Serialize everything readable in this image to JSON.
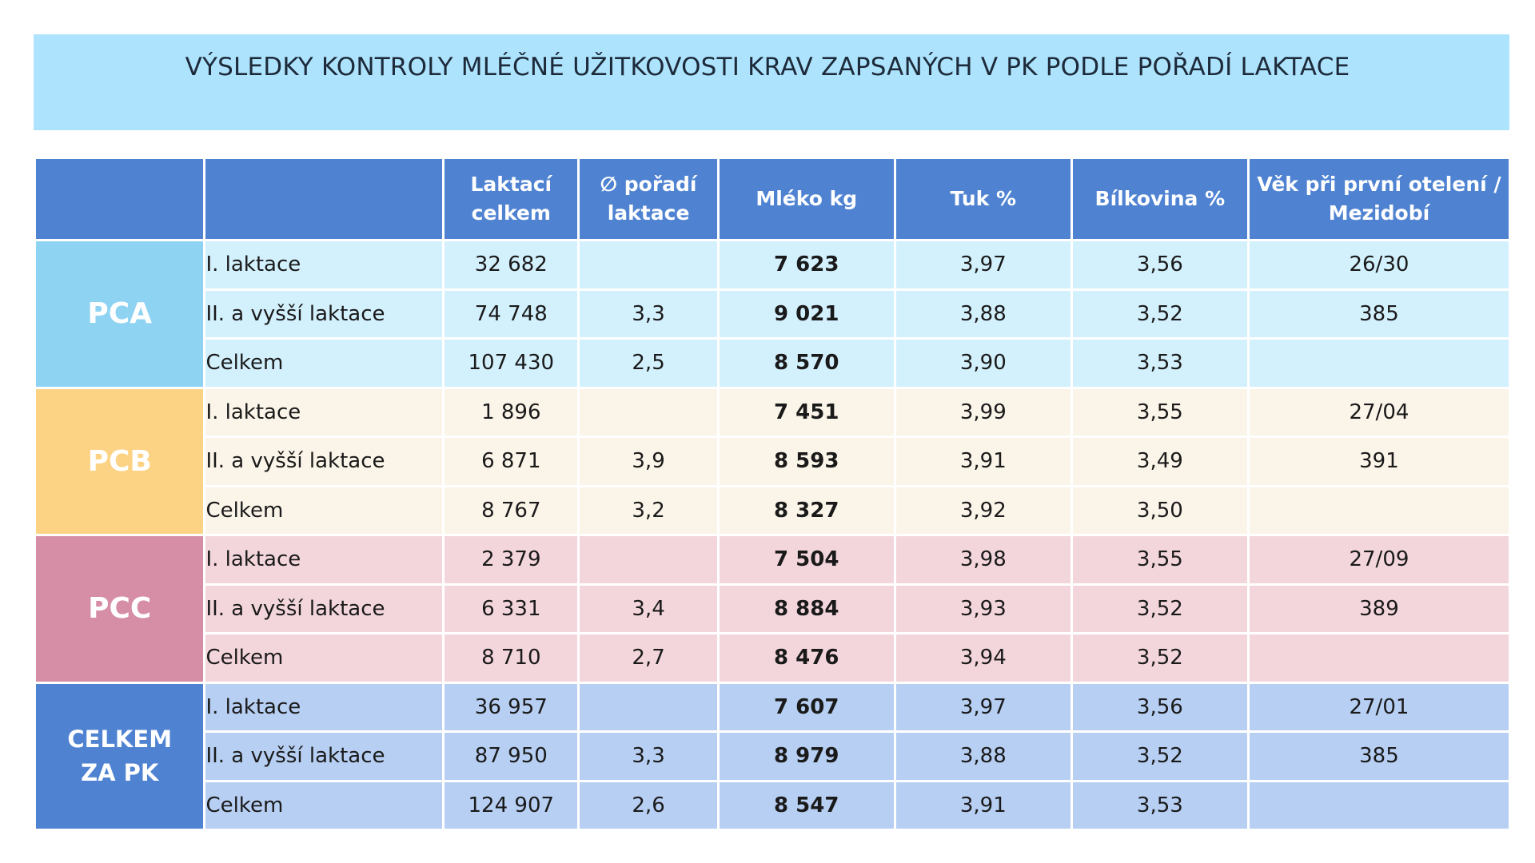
{
  "title": "VÝSLEDKY KONTROLY MLÉČNÉ UŽITKOVOSTI KRAV ZAPSANÝCH V PK PODLE POŘADÍ LAKTACE",
  "colors": {
    "banner": "#ade3fd",
    "header": "#4f83d2",
    "pca": "#8fd3f3",
    "pcb": "#fcd385",
    "pcc": "#d68ea6",
    "total": "#4f83d2"
  },
  "columns": {
    "laktaci_celkem": [
      "Laktací",
      "celkem"
    ],
    "poradi": [
      "∅ pořadí",
      "laktace"
    ],
    "mleko": "Mléko kg",
    "tuk": "Tuk %",
    "bilkovina": "Bílkovina %",
    "vek": [
      "Věk při první otelení /",
      "Mezidobí"
    ]
  },
  "groups": [
    {
      "name": "PCA",
      "rows": [
        {
          "label": "I. laktace",
          "laktaci": "32 682",
          "poradi": "",
          "mleko": "7 623",
          "tuk": "3,97",
          "bilkovina": "3,56",
          "vek": "26/30"
        },
        {
          "label": "II. a vyšší laktace",
          "laktaci": "74 748",
          "poradi": "3,3",
          "mleko": "9 021",
          "tuk": "3,88",
          "bilkovina": "3,52",
          "vek": "385"
        },
        {
          "label": "Celkem",
          "laktaci": "107 430",
          "poradi": "2,5",
          "mleko": "8 570",
          "tuk": "3,90",
          "bilkovina": "3,53",
          "vek": ""
        }
      ]
    },
    {
      "name": "PCB",
      "rows": [
        {
          "label": "I. laktace",
          "laktaci": "1 896",
          "poradi": "",
          "mleko": "7 451",
          "tuk": "3,99",
          "bilkovina": "3,55",
          "vek": "27/04"
        },
        {
          "label": "II. a vyšší laktace",
          "laktaci": "6 871",
          "poradi": "3,9",
          "mleko": "8 593",
          "tuk": "3,91",
          "bilkovina": "3,49",
          "vek": "391"
        },
        {
          "label": "Celkem",
          "laktaci": "8 767",
          "poradi": "3,2",
          "mleko": "8 327",
          "tuk": "3,92",
          "bilkovina": "3,50",
          "vek": ""
        }
      ]
    },
    {
      "name": "PCC",
      "rows": [
        {
          "label": "I. laktace",
          "laktaci": "2 379",
          "poradi": "",
          "mleko": "7 504",
          "tuk": "3,98",
          "bilkovina": "3,55",
          "vek": "27/09"
        },
        {
          "label": "II. a vyšší laktace",
          "laktaci": "6 331",
          "poradi": "3,4",
          "mleko": "8 884",
          "tuk": "3,93",
          "bilkovina": "3,52",
          "vek": "389"
        },
        {
          "label": "Celkem",
          "laktaci": "8 710",
          "poradi": "2,7",
          "mleko": "8 476",
          "tuk": "3,94",
          "bilkovina": "3,52",
          "vek": ""
        }
      ]
    },
    {
      "name": [
        "CELKEM",
        "ZA PK"
      ],
      "rows": [
        {
          "label": "I. laktace",
          "laktaci": "36 957",
          "poradi": "",
          "mleko": "7 607",
          "tuk": "3,97",
          "bilkovina": "3,56",
          "vek": "27/01"
        },
        {
          "label": "II. a vyšší laktace",
          "laktaci": "87 950",
          "poradi": "3,3",
          "mleko": "8 979",
          "tuk": "3,88",
          "bilkovina": "3,52",
          "vek": "385"
        },
        {
          "label": "Celkem",
          "laktaci": "124 907",
          "poradi": "2,6",
          "mleko": "8 547",
          "tuk": "3,91",
          "bilkovina": "3,53",
          "vek": ""
        }
      ]
    }
  ]
}
